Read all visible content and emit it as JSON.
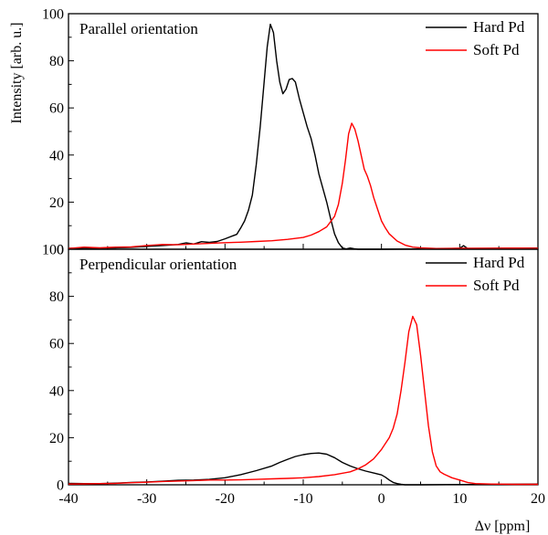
{
  "chart_data": [
    {
      "type": "line",
      "title": "Parallel orientation",
      "xlabel": "Δν [ppm]",
      "ylabel": "Intensity [arb. u.]",
      "xlim": [
        -40,
        20
      ],
      "ylim": [
        0,
        100
      ],
      "y_ticks": [
        "0",
        "20",
        "40",
        "60",
        "80",
        "100"
      ],
      "legend_position": "top-right",
      "series": [
        {
          "name": "Hard Pd",
          "color": "#000000",
          "points": [
            [
              -40,
              0.4
            ],
            [
              -38,
              0.5
            ],
            [
              -36,
              0.5
            ],
            [
              -34,
              0.6
            ],
            [
              -32,
              0.8
            ],
            [
              -30,
              1.2
            ],
            [
              -28,
              1.6
            ],
            [
              -26,
              2.0
            ],
            [
              -25,
              2.7
            ],
            [
              -24,
              2.2
            ],
            [
              -23,
              3.2
            ],
            [
              -22,
              2.9
            ],
            [
              -21,
              3.3
            ],
            [
              -20,
              4.4
            ],
            [
              -19,
              5.7
            ],
            [
              -18.5,
              6.3
            ],
            [
              -18,
              9.0
            ],
            [
              -17.5,
              12.0
            ],
            [
              -17,
              16.5
            ],
            [
              -16.5,
              23.0
            ],
            [
              -16,
              36.0
            ],
            [
              -15.5,
              52.0
            ],
            [
              -15,
              71.0
            ],
            [
              -14.6,
              86.0
            ],
            [
              -14.2,
              95.5
            ],
            [
              -13.8,
              92.0
            ],
            [
              -13.4,
              80.0
            ],
            [
              -13,
              71.0
            ],
            [
              -12.6,
              66.0
            ],
            [
              -12.2,
              68.0
            ],
            [
              -11.8,
              72.0
            ],
            [
              -11.4,
              72.5
            ],
            [
              -11,
              71.0
            ],
            [
              -10.5,
              64.0
            ],
            [
              -10,
              58.0
            ],
            [
              -9.5,
              52.0
            ],
            [
              -9,
              47.0
            ],
            [
              -8.5,
              40.0
            ],
            [
              -8,
              32.0
            ],
            [
              -7.5,
              26.0
            ],
            [
              -7,
              20.0
            ],
            [
              -6.5,
              13.0
            ],
            [
              -6,
              6.5
            ],
            [
              -5.5,
              2.8
            ],
            [
              -5,
              0.6
            ],
            [
              -4.5,
              0.1
            ],
            [
              -4,
              0.5
            ],
            [
              -3.5,
              0.2
            ],
            [
              -3,
              0.0
            ],
            [
              0,
              0.0
            ],
            [
              5,
              0.1
            ],
            [
              8,
              0.2
            ],
            [
              10,
              0.4
            ],
            [
              10.5,
              1.5
            ],
            [
              11,
              0.3
            ],
            [
              14,
              0.4
            ],
            [
              17,
              0.5
            ],
            [
              20,
              0.5
            ]
          ]
        },
        {
          "name": "Soft Pd",
          "color": "#ff0000",
          "points": [
            [
              -40,
              0.3
            ],
            [
              -38,
              0.9
            ],
            [
              -36,
              0.6
            ],
            [
              -34,
              0.9
            ],
            [
              -32,
              1.0
            ],
            [
              -30,
              1.6
            ],
            [
              -28,
              2.0
            ],
            [
              -26,
              1.9
            ],
            [
              -24,
              2.2
            ],
            [
              -22,
              2.5
            ],
            [
              -20,
              2.8
            ],
            [
              -18,
              3.0
            ],
            [
              -16,
              3.3
            ],
            [
              -14,
              3.6
            ],
            [
              -12,
              4.2
            ],
            [
              -10,
              5.0
            ],
            [
              -9,
              6.0
            ],
            [
              -8,
              7.5
            ],
            [
              -7,
              9.5
            ],
            [
              -6,
              14.0
            ],
            [
              -5.5,
              19.0
            ],
            [
              -5,
              28.0
            ],
            [
              -4.6,
              38.0
            ],
            [
              -4.2,
              49.0
            ],
            [
              -3.8,
              53.5
            ],
            [
              -3.4,
              51.0
            ],
            [
              -3,
              46.0
            ],
            [
              -2.6,
              40.0
            ],
            [
              -2.2,
              34.0
            ],
            [
              -1.8,
              31.0
            ],
            [
              -1.4,
              27.0
            ],
            [
              -1,
              22.0
            ],
            [
              -0.5,
              17.0
            ],
            [
              0,
              12.0
            ],
            [
              0.5,
              9.0
            ],
            [
              1,
              6.5
            ],
            [
              2,
              3.5
            ],
            [
              3,
              1.8
            ],
            [
              4,
              0.9
            ],
            [
              5,
              0.6
            ],
            [
              7,
              0.3
            ],
            [
              10,
              0.4
            ],
            [
              14,
              0.4
            ],
            [
              17,
              0.5
            ],
            [
              20,
              0.4
            ]
          ]
        }
      ]
    },
    {
      "type": "line",
      "title": "Perpendicular orientation",
      "xlabel": "Δν [ppm]",
      "ylabel": "Intensity [arb. u.]",
      "xlim": [
        -40,
        20
      ],
      "ylim": [
        0,
        100
      ],
      "x_ticks": [
        "-40",
        "-30",
        "-20",
        "-10",
        "0",
        "10",
        "20"
      ],
      "y_ticks": [
        "0",
        "20",
        "40",
        "60",
        "80",
        "100"
      ],
      "legend_position": "top-right",
      "series": [
        {
          "name": "Hard Pd",
          "color": "#000000",
          "points": [
            [
              -40,
              0.6
            ],
            [
              -38,
              0.5
            ],
            [
              -36,
              0.5
            ],
            [
              -34,
              0.7
            ],
            [
              -32,
              1.0
            ],
            [
              -30,
              1.2
            ],
            [
              -28,
              1.5
            ],
            [
              -26,
              1.9
            ],
            [
              -24,
              2.0
            ],
            [
              -22,
              2.3
            ],
            [
              -20,
              3.0
            ],
            [
              -18,
              4.3
            ],
            [
              -16,
              6.0
            ],
            [
              -14,
              8.0
            ],
            [
              -13,
              9.5
            ],
            [
              -12,
              10.8
            ],
            [
              -11,
              12.0
            ],
            [
              -10,
              12.8
            ],
            [
              -9,
              13.3
            ],
            [
              -8,
              13.5
            ],
            [
              -7,
              13.0
            ],
            [
              -6,
              11.5
            ],
            [
              -5,
              9.5
            ],
            [
              -4,
              8.0
            ],
            [
              -3,
              6.8
            ],
            [
              -2,
              5.8
            ],
            [
              -1,
              5.0
            ],
            [
              0,
              4.2
            ],
            [
              0.5,
              3.2
            ],
            [
              1,
              2.0
            ],
            [
              1.5,
              1.0
            ],
            [
              2,
              0.5
            ],
            [
              2.5,
              0.2
            ],
            [
              3,
              0.0
            ],
            [
              5,
              0.0
            ],
            [
              10,
              0.1
            ],
            [
              15,
              0.2
            ],
            [
              20,
              0.3
            ]
          ]
        },
        {
          "name": "Soft Pd",
          "color": "#ff0000",
          "points": [
            [
              -40,
              0.3
            ],
            [
              -38,
              0.4
            ],
            [
              -36,
              0.5
            ],
            [
              -34,
              0.6
            ],
            [
              -32,
              0.9
            ],
            [
              -30,
              1.1
            ],
            [
              -28,
              1.4
            ],
            [
              -26,
              1.6
            ],
            [
              -24,
              1.8
            ],
            [
              -22,
              2.0
            ],
            [
              -20,
              2.0
            ],
            [
              -18,
              2.1
            ],
            [
              -16,
              2.3
            ],
            [
              -14,
              2.5
            ],
            [
              -12,
              2.7
            ],
            [
              -10,
              3.0
            ],
            [
              -8,
              3.5
            ],
            [
              -6,
              4.3
            ],
            [
              -4,
              5.5
            ],
            [
              -3,
              6.8
            ],
            [
              -2,
              8.5
            ],
            [
              -1,
              11.0
            ],
            [
              0,
              15.0
            ],
            [
              1,
              20.0
            ],
            [
              1.5,
              24.0
            ],
            [
              2,
              30.0
            ],
            [
              2.5,
              40.0
            ],
            [
              3,
              52.0
            ],
            [
              3.5,
              65.0
            ],
            [
              4,
              71.5
            ],
            [
              4.5,
              68.0
            ],
            [
              5,
              55.0
            ],
            [
              5.5,
              40.0
            ],
            [
              6,
              25.0
            ],
            [
              6.5,
              14.0
            ],
            [
              7,
              8.0
            ],
            [
              7.5,
              5.5
            ],
            [
              8,
              4.5
            ],
            [
              9,
              3.0
            ],
            [
              10,
              2.0
            ],
            [
              11,
              1.0
            ],
            [
              12,
              0.5
            ],
            [
              14,
              0.3
            ],
            [
              17,
              0.2
            ],
            [
              20,
              0.2
            ]
          ]
        }
      ]
    }
  ]
}
